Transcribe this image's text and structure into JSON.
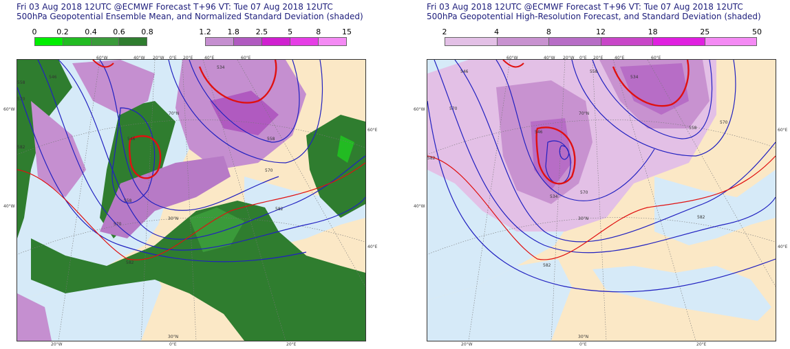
{
  "colors": {
    "sea": "#d6eaf8",
    "land": "#fbe8c6",
    "green_light": "#00ff00",
    "green_dark": "#2f7d2f",
    "purple_light": "#d8b0dc",
    "purple_mid": "#b77ac6",
    "magenta": "#e040e0",
    "height_line": "#2020c0",
    "red_line": "#e01010"
  },
  "left": {
    "title_line1": "Fri 03 Aug 2018 12UTC @ECMWF Forecast T+96 VT: Tue 07 Aug 2018 12UTC",
    "title_line2": "500hPa Geopotential Ensemble Mean, and Normalized Standard Deviation (shaded)",
    "colorbar_green": {
      "ticks": [
        "0",
        "0.2",
        "0.4",
        "0.6",
        "0.8"
      ],
      "colors": [
        "#00ee00",
        "#22bb22",
        "#3a9a3a",
        "#2f7d2f"
      ]
    },
    "colorbar_purple": {
      "ticks": [
        "1.2",
        "1.8",
        "2.5",
        "5",
        "8",
        "15"
      ],
      "colors": [
        "#c58fd0",
        "#b05ac0",
        "#d020d0",
        "#e63ee6",
        "#f48af4"
      ]
    },
    "contour_labels": [
      "546",
      "534",
      "558",
      "570",
      "582",
      "546",
      "570",
      "558",
      "570",
      "558",
      "582",
      "582"
    ],
    "grid_labels": [
      "60°W",
      "40°W",
      "20°W",
      "0°E",
      "20°E",
      "40°E",
      "60°E",
      "60°W",
      "70°N",
      "60°E",
      "40°W",
      "30°N",
      "40°E",
      "20°W",
      "30°N",
      "0°E",
      "20°E"
    ]
  },
  "right": {
    "title_line1": "Fri 03 Aug 2018 12UTC @ECMWF Forecast T+96 VT: Tue 07 Aug 2018 12UTC",
    "title_line2": "500hPa Geopotential High-Resolution Forecast, and Standard Deviation (shaded)",
    "colorbar": {
      "ticks": [
        "2",
        "4",
        "8",
        "12",
        "18",
        "25",
        "50"
      ],
      "colors": [
        "#e3c0e6",
        "#c892d0",
        "#b76dc6",
        "#c846c8",
        "#e020e0",
        "#f48af4"
      ]
    },
    "contour_labels": [
      "546",
      "534",
      "558",
      "570",
      "558",
      "570",
      "582",
      "546",
      "534",
      "570",
      "582",
      "582"
    ],
    "grid_labels": [
      "60°W",
      "40°W",
      "20°W",
      "0°E",
      "20°E",
      "40°E",
      "60°E",
      "60°W",
      "70°N",
      "60°E",
      "40°W",
      "30°N",
      "40°E",
      "20°W",
      "30°N",
      "0°E",
      "20°E"
    ]
  }
}
